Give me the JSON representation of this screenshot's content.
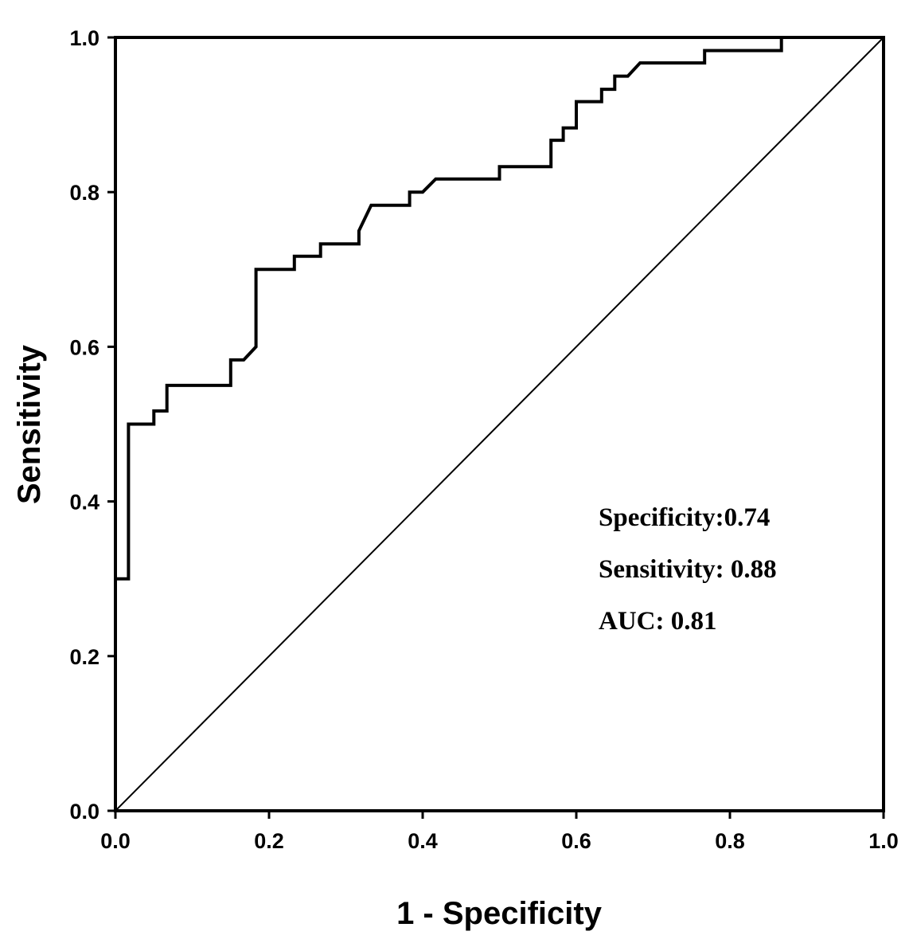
{
  "chart_data": {
    "type": "line",
    "title": "",
    "xlabel": "1 - Specificity",
    "ylabel": "Sensitivity",
    "xlim": [
      0,
      1
    ],
    "ylim": [
      0,
      1
    ],
    "x_ticks": [
      "0.0",
      "0.2",
      "0.4",
      "0.6",
      "0.8",
      "1.0"
    ],
    "y_ticks": [
      "0.0",
      "0.2",
      "0.4",
      "0.6",
      "0.8",
      "1.0"
    ],
    "grid": false,
    "legend": "none",
    "series": [
      {
        "role": "roc-curve",
        "step": true,
        "points": [
          [
            0.0,
            0.0
          ],
          [
            0.0,
            0.3
          ],
          [
            0.017,
            0.3
          ],
          [
            0.017,
            0.5
          ],
          [
            0.05,
            0.5
          ],
          [
            0.05,
            0.517
          ],
          [
            0.067,
            0.517
          ],
          [
            0.067,
            0.55
          ],
          [
            0.15,
            0.55
          ],
          [
            0.15,
            0.583
          ],
          [
            0.167,
            0.583
          ],
          [
            0.183,
            0.6
          ],
          [
            0.183,
            0.7
          ],
          [
            0.233,
            0.7
          ],
          [
            0.233,
            0.717
          ],
          [
            0.267,
            0.717
          ],
          [
            0.267,
            0.733
          ],
          [
            0.317,
            0.733
          ],
          [
            0.317,
            0.75
          ],
          [
            0.333,
            0.783
          ],
          [
            0.383,
            0.783
          ],
          [
            0.383,
            0.8
          ],
          [
            0.4,
            0.8
          ],
          [
            0.417,
            0.817
          ],
          [
            0.5,
            0.817
          ],
          [
            0.5,
            0.833
          ],
          [
            0.567,
            0.833
          ],
          [
            0.567,
            0.867
          ],
          [
            0.583,
            0.867
          ],
          [
            0.583,
            0.883
          ],
          [
            0.6,
            0.883
          ],
          [
            0.6,
            0.917
          ],
          [
            0.633,
            0.917
          ],
          [
            0.633,
            0.933
          ],
          [
            0.65,
            0.933
          ],
          [
            0.65,
            0.95
          ],
          [
            0.667,
            0.95
          ],
          [
            0.683,
            0.967
          ],
          [
            0.767,
            0.967
          ],
          [
            0.767,
            0.983
          ],
          [
            0.867,
            0.983
          ],
          [
            0.867,
            1.0
          ],
          [
            1.0,
            1.0
          ]
        ]
      },
      {
        "role": "reference-diagonal",
        "points": [
          [
            0.0,
            0.0
          ],
          [
            1.0,
            1.0
          ]
        ]
      }
    ],
    "annotations": [
      "Specificity:0.74",
      "Sensitivity: 0.88",
      "AUC: 0.81"
    ]
  }
}
